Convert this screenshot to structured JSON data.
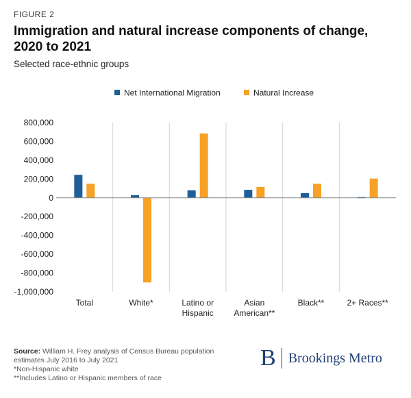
{
  "figure_label": "FIGURE 2",
  "title": "Immigration and natural increase components of change, 2020 to 2021",
  "subtitle": "Selected race-ethnic groups",
  "colors": {
    "migration": "#1f5f99",
    "natural": "#f7a126",
    "axis": "#888888",
    "divider": "#d6d6d6",
    "brand": "#1f3f75"
  },
  "chart_data": {
    "type": "bar",
    "categories": [
      [
        "Total"
      ],
      [
        "White*"
      ],
      [
        "Latino or",
        "Hispanic"
      ],
      [
        "Asian",
        "American**"
      ],
      [
        "Black**"
      ],
      [
        "2+ Races**"
      ]
    ],
    "series": [
      {
        "name": "Net International Migration",
        "values": [
          245000,
          28000,
          80000,
          85000,
          50000,
          8000
        ]
      },
      {
        "name": "Natural Increase",
        "values": [
          150000,
          -900000,
          685000,
          115000,
          150000,
          205000
        ]
      }
    ],
    "y_ticks": [
      "800,000",
      "600,000",
      "400,000",
      "200,000",
      "0",
      "-200,000",
      "-400,000",
      "-600,000",
      "-800,000",
      "-1,000,000"
    ],
    "ylim": [
      -1000000,
      800000
    ],
    "legend_position": "top",
    "grid": false
  },
  "footer": {
    "source_label": "Source:",
    "source_text": "William H. Frey analysis of Census Bureau population estimates July 2016 to July 2021",
    "note1": "*Non-Hispanic white",
    "note2": "**Includes Latino or Hispanic members of race"
  },
  "logo": {
    "mark": "B",
    "text": "Brookings Metro"
  }
}
